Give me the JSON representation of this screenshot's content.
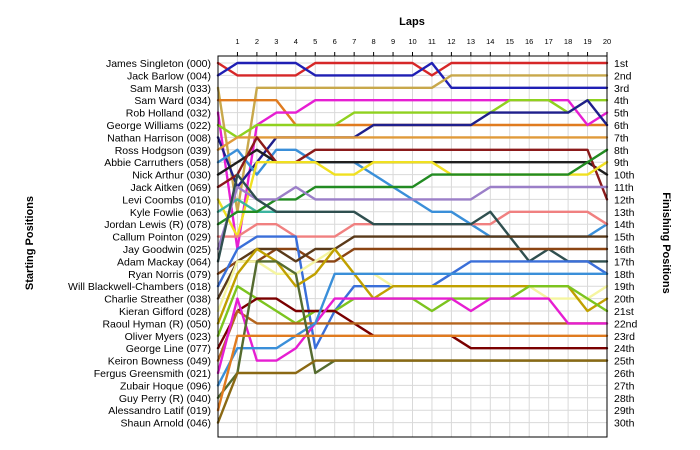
{
  "chart_data": {
    "type": "line",
    "title": "",
    "xlabel": "Laps",
    "ylabel_left": "Starting Positions",
    "ylabel_right": "Finishing Positions",
    "laps": [
      1,
      2,
      3,
      4,
      5,
      6,
      7,
      8,
      9,
      10,
      11,
      12,
      13,
      14,
      15,
      16,
      17,
      18,
      19,
      20
    ],
    "drivers": [
      "James Singleton (000)",
      "Jack Barlow (004)",
      "Sam Marsh (033)",
      "Sam Ward (034)",
      "Rob Holland (032)",
      "George Williams (022)",
      "Nathan Harrison (008)",
      "Ross Hodgson (039)",
      "Abbie Carruthers (058)",
      "Nick Arthur (030)",
      "Jack Aitken (069)",
      "Levi Coombs (010)",
      "Kyle Fowlie (063)",
      "Jordan Lewis (R) (078)",
      "Callum Pointon (029)",
      "Jay Goodwin (025)",
      "Adam Mackay (064)",
      "Ryan Norris (079)",
      "Will Blackwell-Chambers (018)",
      "Charlie Streather (038)",
      "Kieran Gifford (028)",
      "Raoul Hyman  (R) (050)",
      "Oliver Myers (023)",
      "George Line (077)",
      "Keiron Bowness (049)",
      "Fergus Greensmith (021)",
      "Zubair Hoque (096)",
      "Guy Perry (R) (040)",
      "Alessandro Latif (019)",
      "Shaun Arnold (046)"
    ],
    "finishing_labels": [
      "1st",
      "2nd",
      "3rd",
      "4th",
      "5th",
      "6th",
      "7th",
      "8th",
      "9th",
      "10th",
      "11th",
      "12th",
      "13th",
      "14th",
      "15th",
      "16th",
      "17th",
      "18th",
      "19th",
      "20th",
      "21st",
      "22nd",
      "23rd",
      "24th",
      "25th",
      "26th",
      "27th",
      "28th",
      "29th",
      "30th"
    ],
    "series": [
      {
        "color": "#d62728",
        "positions": [
          1,
          2,
          2,
          2,
          2,
          1,
          1,
          1,
          1,
          1,
          1,
          2,
          1,
          1,
          1,
          1,
          1,
          1,
          1,
          1,
          1
        ]
      },
      {
        "color": "#1f1fb4",
        "positions": [
          2,
          1,
          1,
          1,
          1,
          2,
          2,
          2,
          2,
          2,
          2,
          1,
          3,
          3,
          3,
          3,
          3,
          3,
          3,
          3,
          3
        ]
      },
      {
        "color": "#c8a84b",
        "positions": [
          3,
          13,
          3,
          3,
          3,
          3,
          3,
          3,
          3,
          3,
          3,
          3,
          2,
          2,
          2,
          2,
          2,
          2,
          2,
          2,
          2
        ]
      },
      {
        "color": "#e07b1f",
        "positions": [
          4,
          4,
          4,
          4,
          6,
          6,
          6,
          6,
          6,
          6,
          6,
          6,
          6,
          6,
          6,
          6,
          6,
          6,
          6,
          6,
          6
        ]
      },
      {
        "color": "#e61ed2",
        "positions": [
          5,
          16,
          6,
          5,
          5,
          4,
          4,
          4,
          4,
          4,
          4,
          4,
          4,
          4,
          4,
          4,
          4,
          4,
          4,
          6,
          5
        ]
      },
      {
        "color": "#8fd11f",
        "positions": [
          6,
          7,
          6,
          6,
          6,
          6,
          6,
          5,
          5,
          5,
          5,
          5,
          5,
          5,
          5,
          4,
          4,
          4,
          5,
          4,
          4
        ]
      },
      {
        "color": "#1f1f8c",
        "positions": [
          7,
          11,
          9,
          7,
          7,
          7,
          7,
          7,
          6,
          6,
          6,
          6,
          6,
          6,
          5,
          5,
          5,
          5,
          5,
          4,
          6
        ]
      },
      {
        "color": "#e09a3a",
        "positions": [
          8,
          7,
          7,
          7,
          7,
          7,
          7,
          7,
          7,
          7,
          7,
          7,
          7,
          7,
          7,
          7,
          7,
          7,
          7,
          7,
          7
        ]
      },
      {
        "color": "#3a8fd9",
        "positions": [
          9,
          8,
          10,
          8,
          8,
          9,
          9,
          9,
          10,
          11,
          12,
          13,
          13,
          14,
          15,
          15,
          15,
          15,
          15,
          15,
          14
        ]
      },
      {
        "color": "#1f1f1f",
        "positions": [
          10,
          9,
          8,
          9,
          9,
          9,
          9,
          9,
          9,
          9,
          9,
          9,
          9,
          9,
          9,
          9,
          9,
          9,
          9,
          9,
          10
        ]
      },
      {
        "color": "#8b1a1a",
        "positions": [
          11,
          10,
          7,
          9,
          9,
          8,
          8,
          8,
          8,
          8,
          8,
          8,
          8,
          8,
          8,
          8,
          8,
          8,
          8,
          8,
          12
        ]
      },
      {
        "color": "#f0e020",
        "positions": [
          12,
          15,
          9,
          9,
          9,
          9,
          10,
          10,
          9,
          9,
          9,
          9,
          10,
          10,
          10,
          10,
          10,
          10,
          10,
          10,
          9
        ]
      },
      {
        "color": "#3cb4a0",
        "positions": [
          13,
          12,
          13,
          13,
          13
        ]
      },
      {
        "color": "#228b22",
        "positions": [
          14,
          13,
          13,
          12,
          12,
          11,
          11,
          11,
          11,
          11,
          11,
          10,
          10,
          10,
          10,
          10,
          10,
          10,
          10,
          9,
          8
        ]
      },
      {
        "color": "#f08080",
        "positions": [
          15,
          15,
          14,
          14,
          15,
          15,
          15,
          14,
          14,
          14,
          14,
          14,
          14,
          14,
          14,
          13,
          13,
          13,
          13,
          13,
          14
        ]
      },
      {
        "color": "#9b7fc8",
        "positions": [
          16,
          11,
          12,
          12,
          11,
          12,
          12,
          12,
          12,
          12,
          12,
          12,
          12,
          12,
          11,
          11,
          11,
          11,
          11,
          11,
          11
        ]
      },
      {
        "color": "#2f4f4f",
        "positions": [
          17,
          10,
          12,
          13,
          13,
          13,
          13,
          13,
          14,
          14,
          14,
          14,
          14,
          14,
          13,
          15,
          17,
          16,
          17,
          17,
          17
        ]
      },
      {
        "color": "#8b4513",
        "positions": [
          18,
          17,
          17,
          16,
          16,
          17,
          17,
          16,
          16,
          16,
          16,
          16,
          16,
          16,
          16,
          16,
          16,
          16,
          16,
          16,
          16
        ]
      },
      {
        "color": "#3a6fd9",
        "positions": [
          19,
          16,
          15,
          15,
          15,
          24,
          21,
          19,
          19,
          19,
          19,
          19,
          18,
          17,
          17,
          17,
          17,
          17,
          17,
          17,
          18
        ]
      },
      {
        "color": "#5a3a1a",
        "positions": [
          20,
          17,
          16,
          16,
          17,
          16,
          16,
          15,
          15,
          15,
          15,
          15,
          15,
          15,
          15,
          15,
          15,
          15,
          15,
          15,
          15
        ]
      },
      {
        "color": "#f5f5a0",
        "positions": [
          21,
          17,
          17,
          18,
          18,
          17,
          16,
          18,
          18,
          19,
          19,
          19,
          19,
          19,
          19,
          19,
          19,
          20,
          20,
          20,
          19
        ]
      },
      {
        "color": "#c0a000",
        "positions": [
          22,
          18,
          16,
          17,
          19,
          18,
          16,
          18,
          20,
          19,
          19,
          19,
          19,
          19,
          19,
          19,
          19,
          19,
          19,
          21,
          20
        ]
      },
      {
        "color": "#7cc41f",
        "positions": [
          23,
          19,
          20,
          21,
          22,
          21,
          21,
          20,
          20,
          20,
          20,
          21,
          20,
          20,
          20,
          20,
          19,
          19,
          19,
          20,
          21
        ]
      },
      {
        "color": "#7a0000",
        "positions": [
          24,
          21,
          20,
          20,
          21,
          21,
          21,
          22,
          23,
          23,
          23,
          23,
          23,
          24,
          24,
          24,
          24,
          24,
          24,
          24,
          24
        ]
      },
      {
        "color": "#b5651d",
        "positions": [
          25,
          21,
          22,
          22,
          22,
          22,
          22,
          22,
          22,
          22,
          22,
          22,
          22,
          22,
          22,
          22,
          22,
          22,
          22,
          22,
          22
        ]
      },
      {
        "color": "#e61ed2",
        "positions": [
          26,
          20,
          25,
          25,
          24,
          22,
          20,
          20,
          20,
          20,
          20,
          20,
          20,
          21,
          20,
          20,
          20,
          20,
          22,
          22,
          22
        ]
      },
      {
        "color": "#3a8fd9",
        "positions": [
          27,
          24,
          24,
          24,
          23,
          22,
          18,
          18,
          18,
          18,
          18,
          18,
          18,
          18,
          18,
          18,
          18,
          18,
          18,
          18,
          18
        ]
      },
      {
        "color": "#556b2f",
        "positions": [
          28,
          26,
          17,
          17,
          18,
          26,
          25,
          25,
          25,
          25,
          25,
          25,
          25,
          25,
          25,
          25,
          25,
          25,
          25,
          25,
          25
        ]
      },
      {
        "color": "#e07b1f",
        "positions": [
          29,
          23,
          23,
          23,
          23,
          23,
          23,
          23,
          23,
          23,
          23,
          23,
          23,
          23,
          23,
          23,
          23,
          23,
          23,
          23,
          23
        ]
      },
      {
        "color": "#8b6914",
        "positions": [
          30,
          26,
          26,
          26,
          26,
          25,
          25,
          25,
          25,
          25,
          25,
          25,
          25,
          25,
          25,
          25,
          25,
          25,
          25,
          25,
          25
        ]
      }
    ]
  }
}
